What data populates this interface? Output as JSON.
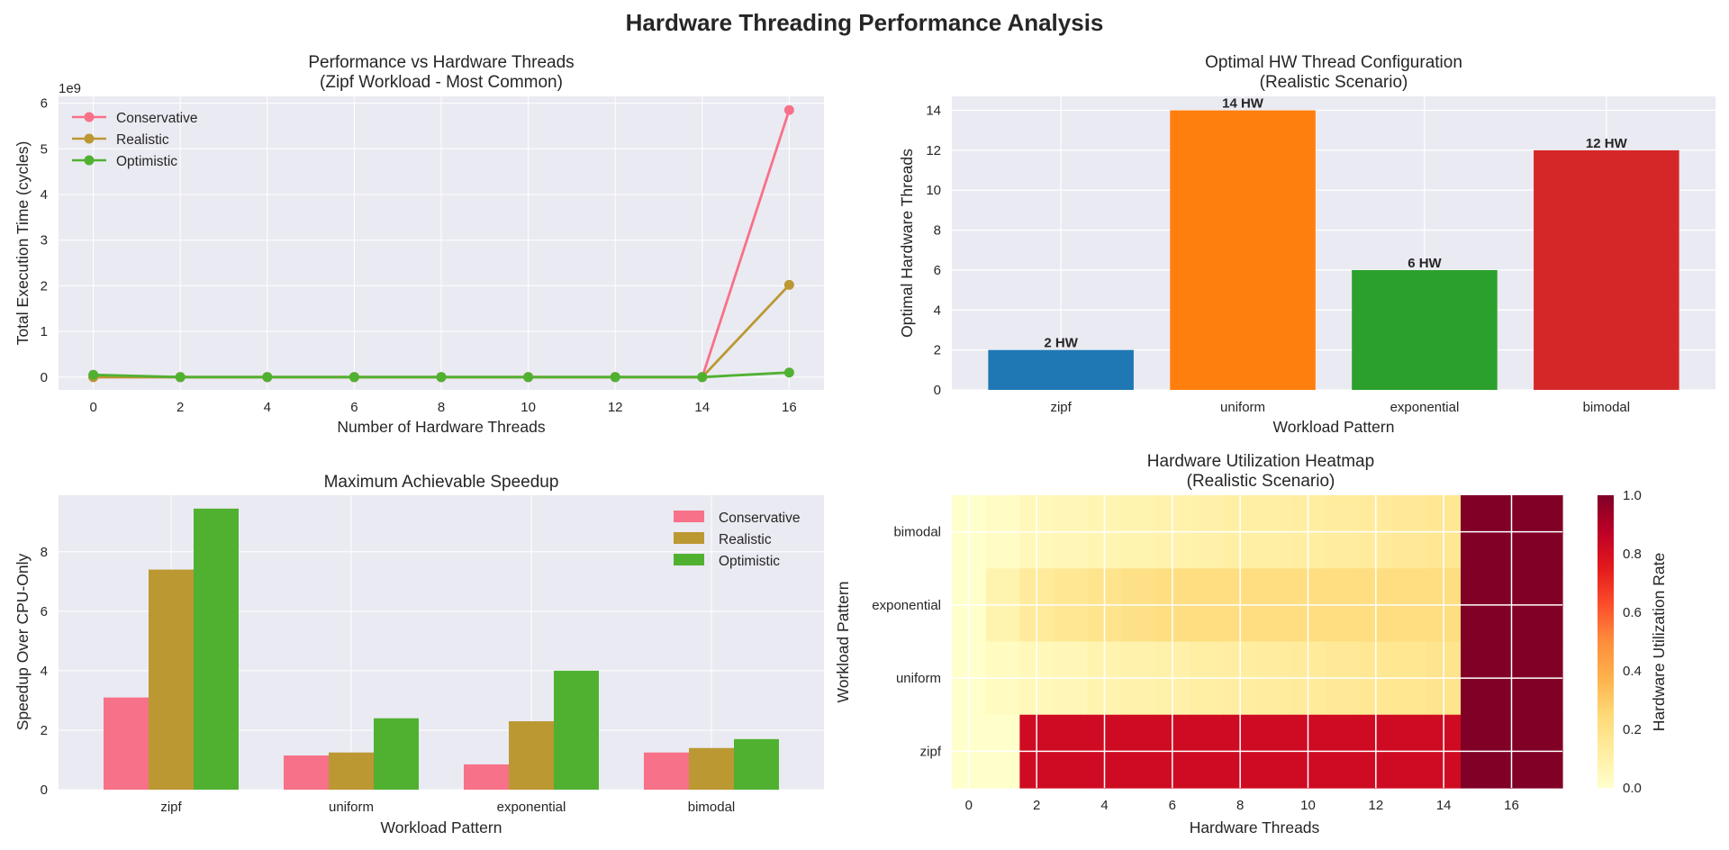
{
  "title": "Hardware Threading Performance Analysis",
  "chart_data": [
    {
      "type": "line",
      "title": "Performance vs Hardware Threads",
      "subtitle": "(Zipf Workload - Most Common)",
      "xlabel": "Number of Hardware Threads",
      "ylabel": "Total Execution Time (cycles)",
      "y_multiplier_label": "1e9",
      "x": [
        0,
        2,
        4,
        6,
        8,
        10,
        12,
        14,
        16
      ],
      "xlim": [
        -0.8,
        16.8
      ],
      "ylim": [
        -0.28,
        6.15
      ],
      "xticks": [
        0,
        2,
        4,
        6,
        8,
        10,
        12,
        14,
        16
      ],
      "yticks": [
        0,
        1,
        2,
        3,
        4,
        5,
        6
      ],
      "legend_position": "upper-left",
      "series": [
        {
          "name": "Conservative",
          "color": "#f77189",
          "values": [
            0.0,
            0.0,
            0.0,
            0.0,
            0.0,
            0.0,
            0.0,
            0.0,
            5.85
          ]
        },
        {
          "name": "Realistic",
          "color": "#bb9832",
          "values": [
            0.0,
            0.0,
            0.0,
            0.0,
            0.0,
            0.0,
            0.0,
            0.0,
            2.02
          ]
        },
        {
          "name": "Optimistic",
          "color": "#50b131",
          "values": [
            0.05,
            0.0,
            0.0,
            0.0,
            0.0,
            0.0,
            0.0,
            0.0,
            0.1
          ]
        }
      ]
    },
    {
      "type": "bar",
      "title": "Optimal HW Thread Configuration",
      "subtitle": "(Realistic Scenario)",
      "xlabel": "Workload Pattern",
      "ylabel": "Optimal Hardware Threads",
      "categories": [
        "zipf",
        "uniform",
        "exponential",
        "bimodal"
      ],
      "values": [
        2,
        14,
        6,
        12
      ],
      "bar_labels": [
        "2 HW",
        "14 HW",
        "6 HW",
        "12 HW"
      ],
      "colors": [
        "#1f77b4",
        "#ff7f0e",
        "#2ca02c",
        "#d62728"
      ],
      "ylim": [
        0,
        14.7
      ],
      "yticks": [
        0,
        2,
        4,
        6,
        8,
        10,
        12,
        14
      ]
    },
    {
      "type": "bar",
      "title": "Maximum Achievable Speedup",
      "xlabel": "Workload Pattern",
      "ylabel": "Speedup Over CPU-Only",
      "categories": [
        "zipf",
        "uniform",
        "exponential",
        "bimodal"
      ],
      "ylim": [
        0,
        9.9
      ],
      "yticks": [
        0,
        2,
        4,
        6,
        8
      ],
      "legend_position": "upper-right",
      "series": [
        {
          "name": "Conservative",
          "color": "#f77189",
          "values": [
            3.1,
            1.15,
            0.85,
            1.25
          ]
        },
        {
          "name": "Realistic",
          "color": "#bb9832",
          "values": [
            7.4,
            1.25,
            2.3,
            1.4
          ]
        },
        {
          "name": "Optimistic",
          "color": "#50b131",
          "values": [
            9.45,
            2.4,
            4.0,
            1.7
          ]
        }
      ]
    },
    {
      "type": "heatmap",
      "title": "Hardware Utilization Heatmap",
      "subtitle": "(Realistic Scenario)",
      "xlabel": "Hardware Threads",
      "ylabel": "Workload Pattern",
      "x": [
        0,
        1,
        2,
        3,
        4,
        5,
        6,
        7,
        8,
        9,
        10,
        11,
        12,
        13,
        14,
        15,
        16,
        17
      ],
      "xticks": [
        0,
        2,
        4,
        6,
        8,
        10,
        12,
        14,
        16
      ],
      "rows": [
        "bimodal",
        "exponential",
        "uniform",
        "zipf"
      ],
      "values": [
        [
          0.0,
          0.02,
          0.05,
          0.06,
          0.07,
          0.08,
          0.09,
          0.1,
          0.11,
          0.11,
          0.12,
          0.13,
          0.14,
          0.15,
          0.16,
          1.0,
          1.0,
          1.0
        ],
        [
          0.0,
          0.08,
          0.14,
          0.16,
          0.18,
          0.2,
          0.22,
          0.22,
          0.22,
          0.22,
          0.22,
          0.22,
          0.22,
          0.22,
          0.22,
          1.0,
          1.0,
          1.0
        ],
        [
          0.0,
          0.03,
          0.05,
          0.06,
          0.08,
          0.09,
          0.1,
          0.11,
          0.12,
          0.13,
          0.14,
          0.15,
          0.16,
          0.17,
          0.18,
          1.0,
          1.0,
          1.0
        ],
        [
          0.0,
          0.0,
          0.82,
          0.82,
          0.82,
          0.82,
          0.82,
          0.82,
          0.82,
          0.82,
          0.82,
          0.82,
          0.82,
          0.82,
          0.82,
          1.0,
          1.0,
          1.0
        ]
      ],
      "colormap": "YlOrRd",
      "colorbar_label": "Hardware Utilization Rate",
      "colorbar_range": [
        0.0,
        1.0
      ],
      "colorbar_ticks": [
        "0.0",
        "0.2",
        "0.4",
        "0.6",
        "0.8",
        "1.0"
      ]
    }
  ]
}
